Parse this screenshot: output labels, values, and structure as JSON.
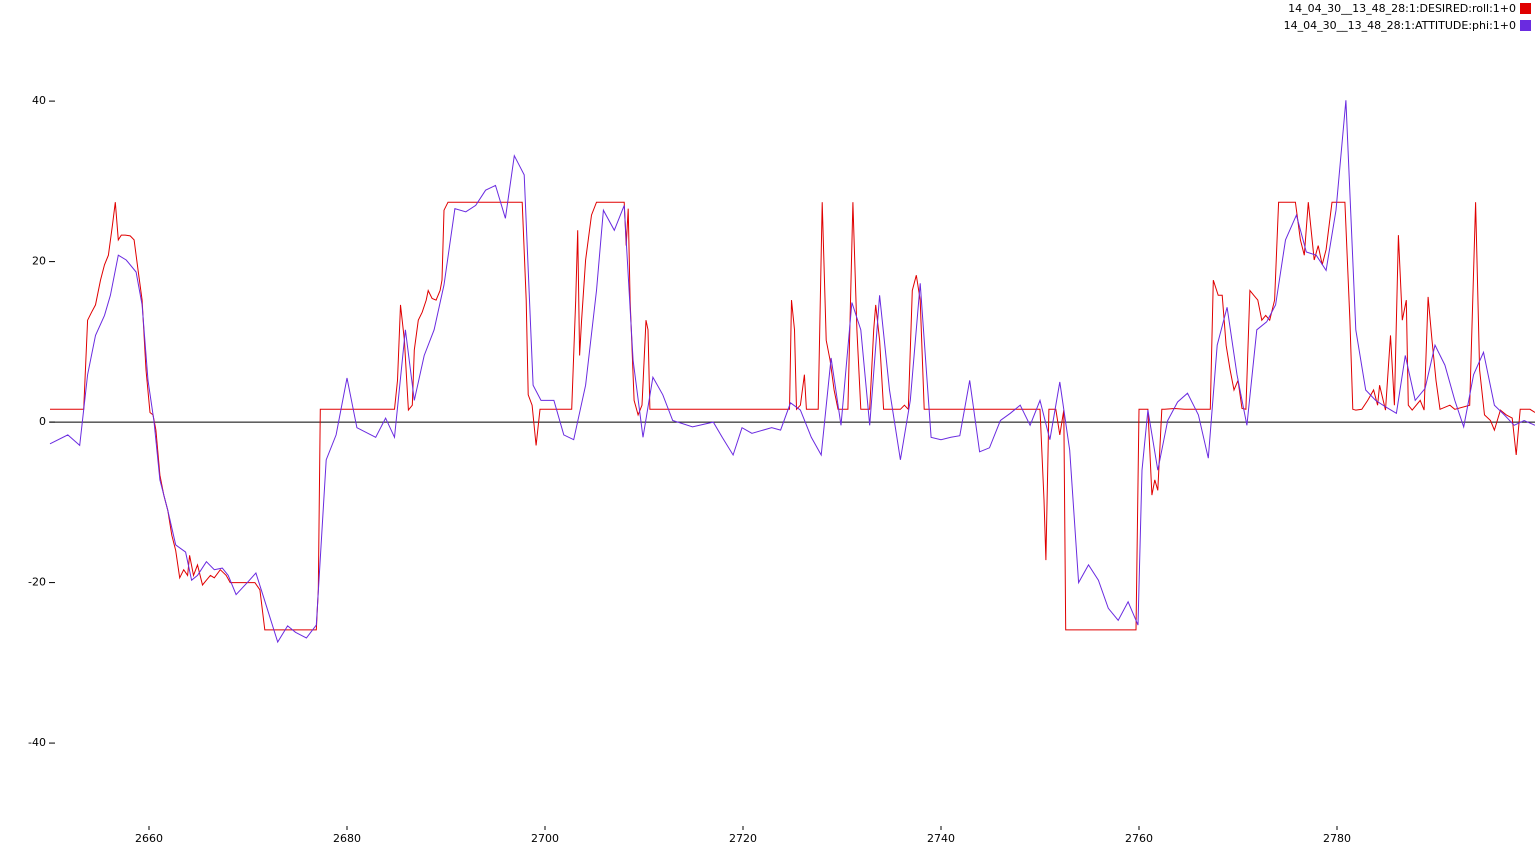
{
  "chart_data": {
    "type": "line",
    "xlim": [
      2650,
      2800
    ],
    "xticks": [
      2660,
      2680,
      2700,
      2720,
      2740,
      2760,
      2780
    ],
    "ylim": [
      -53.2,
      52.6
    ],
    "yticks": [
      -40,
      -20,
      0,
      20,
      40
    ],
    "legend": "upper right",
    "series": [
      {
        "name": "14_04_30__13_48_28:1:DESIRED:roll:1+0",
        "color": "#e00000",
        "x": [
          2650.0,
          2653.4,
          2653.8,
          2654.2,
          2654.6,
          2655.1,
          2655.5,
          2655.9,
          2656.3,
          2656.6,
          2656.9,
          2657.2,
          2657.6,
          2658.1,
          2658.5,
          2658.9,
          2659.3,
          2659.7,
          2660.1,
          2660.4,
          2660.7,
          2661.1,
          2661.5,
          2661.9,
          2662.3,
          2662.7,
          2663.1,
          2663.5,
          2663.9,
          2664.1,
          2664.5,
          2664.9,
          2665.4,
          2665.8,
          2666.2,
          2666.6,
          2667.2,
          2667.8,
          2668.2,
          2669.2,
          2670.7,
          2671.2,
          2671.7,
          2673.2,
          2675.3,
          2676.9,
          2677.1,
          2677.3,
          2679.3,
          2684.8,
          2685.1,
          2685.4,
          2685.8,
          2686.2,
          2686.6,
          2686.8,
          2687.2,
          2687.6,
          2688.0,
          2688.2,
          2688.6,
          2689.0,
          2689.4,
          2689.6,
          2689.8,
          2690.2,
          2692.4,
          2695.5,
          2697.7,
          2698.1,
          2698.3,
          2698.7,
          2699.1,
          2699.5,
          2702.7,
          2703.1,
          2703.3,
          2703.5,
          2703.7,
          2704.1,
          2704.7,
          2705.2,
          2707.6,
          2708.0,
          2708.2,
          2708.4,
          2708.6,
          2709.0,
          2709.4,
          2709.8,
          2710.2,
          2710.4,
          2710.6,
          2715.7,
          2724.7,
          2724.9,
          2725.2,
          2725.4,
          2725.8,
          2726.2,
          2726.4,
          2727.6,
          2728.0,
          2728.4,
          2728.8,
          2729.2,
          2729.6,
          2730.6,
          2731.1,
          2731.5,
          2731.9,
          2732.8,
          2733.2,
          2733.4,
          2733.8,
          2734.2,
          2735.9,
          2736.3,
          2736.7,
          2737.1,
          2737.5,
          2737.9,
          2738.3,
          2738.9,
          2746.0,
          2750.0,
          2750.4,
          2750.6,
          2750.9,
          2751.6,
          2752.0,
          2752.4,
          2752.6,
          2753.0,
          2759.7,
          2760.0,
          2760.9,
          2761.3,
          2761.6,
          2761.9,
          2762.3,
          2762.6,
          2763.6,
          2764.6,
          2767.2,
          2767.5,
          2768.0,
          2768.4,
          2768.8,
          2769.2,
          2769.6,
          2770.0,
          2770.4,
          2770.8,
          2771.2,
          2771.6,
          2772.0,
          2772.4,
          2772.8,
          2773.2,
          2773.7,
          2774.1,
          2775.8,
          2776.3,
          2776.7,
          2777.1,
          2777.7,
          2778.1,
          2778.5,
          2778.9,
          2779.5,
          2780.8,
          2781.3,
          2781.6,
          2781.9,
          2782.5,
          2783.1,
          2783.7,
          2784.1,
          2784.3,
          2784.9,
          2785.4,
          2785.8,
          2786.2,
          2786.6,
          2787.0,
          2787.2,
          2787.6,
          2788.4,
          2788.8,
          2789.2,
          2789.6,
          2790.0,
          2790.4,
          2791.4,
          2791.9,
          2793.4,
          2794.0,
          2794.4,
          2794.9,
          2795.5,
          2795.9,
          2796.5,
          2797.1,
          2797.7,
          2798.1,
          2798.5,
          2799.5,
          2800.0
        ],
        "values": [
          1.6,
          1.6,
          12.7,
          13.7,
          14.6,
          17.7,
          19.6,
          20.8,
          24.5,
          27.4,
          22.7,
          23.3,
          23.3,
          23.2,
          22.7,
          18.9,
          15.2,
          6.5,
          1.2,
          0.9,
          -1.0,
          -6.6,
          -9.1,
          -11.0,
          -14.1,
          -16.0,
          -19.4,
          -18.4,
          -19.1,
          -16.6,
          -19.1,
          -17.8,
          -20.3,
          -19.7,
          -19.1,
          -19.4,
          -18.4,
          -19.1,
          -20.0,
          -20.0,
          -20.0,
          -20.9,
          -25.9,
          -25.9,
          -25.9,
          -25.9,
          -20.9,
          1.6,
          1.6,
          1.6,
          5.2,
          14.6,
          10.2,
          1.5,
          2.1,
          9.0,
          12.7,
          13.7,
          15.2,
          16.4,
          15.4,
          15.2,
          16.4,
          17.7,
          26.4,
          27.4,
          27.4,
          27.4,
          27.4,
          15.2,
          3.4,
          2.1,
          -2.9,
          1.6,
          1.6,
          15.2,
          23.9,
          8.3,
          12.7,
          20.2,
          25.8,
          27.4,
          27.4,
          27.4,
          22.0,
          26.6,
          15.2,
          2.7,
          0.9,
          2.1,
          12.7,
          11.5,
          1.6,
          1.6,
          1.6,
          15.2,
          11.5,
          1.6,
          2.1,
          5.9,
          1.6,
          1.6,
          27.4,
          10.2,
          7.7,
          4.0,
          1.6,
          1.6,
          27.4,
          11.5,
          1.6,
          1.6,
          11.5,
          14.6,
          10.2,
          1.6,
          1.6,
          2.1,
          1.6,
          16.4,
          18.3,
          15.2,
          1.6,
          1.6,
          1.6,
          1.6,
          -9.7,
          -17.2,
          1.6,
          1.6,
          -1.6,
          1.5,
          -25.9,
          -25.9,
          -25.9,
          1.6,
          1.6,
          -9.1,
          -7.2,
          -8.5,
          1.6,
          1.6,
          1.7,
          1.6,
          1.6,
          17.7,
          15.8,
          15.8,
          9.6,
          6.5,
          4.0,
          5.2,
          1.7,
          1.6,
          16.4,
          15.8,
          15.2,
          12.7,
          13.3,
          12.7,
          15.2,
          27.4,
          27.4,
          22.7,
          20.8,
          27.4,
          20.2,
          22.0,
          19.6,
          21.5,
          27.4,
          27.4,
          12.7,
          1.6,
          1.5,
          1.6,
          2.7,
          4.0,
          2.1,
          4.6,
          1.5,
          10.8,
          2.1,
          23.3,
          12.7,
          15.2,
          2.1,
          1.5,
          2.7,
          1.5,
          15.6,
          10.2,
          5.2,
          1.6,
          2.1,
          1.6,
          2.1,
          27.4,
          6.5,
          0.9,
          0.2,
          -1.0,
          1.5,
          0.9,
          0.5,
          -4.1,
          1.6,
          1.6,
          1.2
        ]
      },
      {
        "name": "14_04_30__13_48_28:1:ATTITUDE:phi:1+0",
        "color": "#6a2be0",
        "x": [
          2650.0,
          2651.8,
          2653.0,
          2653.8,
          2654.6,
          2655.5,
          2656.1,
          2656.9,
          2657.7,
          2658.7,
          2659.3,
          2659.9,
          2660.5,
          2661.1,
          2661.9,
          2662.7,
          2663.7,
          2664.3,
          2664.9,
          2665.8,
          2666.6,
          2667.4,
          2668.0,
          2668.8,
          2670.0,
          2670.8,
          2671.6,
          2673.0,
          2674.0,
          2674.8,
          2675.9,
          2676.9,
          2677.9,
          2678.9,
          2680.0,
          2681.0,
          2682.9,
          2683.9,
          2684.8,
          2685.9,
          2686.8,
          2687.8,
          2688.8,
          2689.8,
          2690.9,
          2692.0,
          2693.0,
          2694.0,
          2695.0,
          2696.0,
          2696.9,
          2697.9,
          2698.8,
          2699.6,
          2700.9,
          2701.9,
          2702.9,
          2704.1,
          2705.2,
          2705.9,
          2707.0,
          2708.0,
          2708.9,
          2709.9,
          2710.9,
          2711.9,
          2712.9,
          2714.9,
          2717.0,
          2717.9,
          2719.0,
          2719.9,
          2720.9,
          2722.9,
          2723.8,
          2724.8,
          2725.8,
          2726.9,
          2727.9,
          2728.9,
          2729.9,
          2731.0,
          2731.9,
          2732.8,
          2733.8,
          2734.8,
          2735.9,
          2736.9,
          2737.9,
          2739.0,
          2740.0,
          2741.0,
          2741.9,
          2742.9,
          2743.9,
          2744.9,
          2746.0,
          2747.0,
          2748.0,
          2749.0,
          2750.0,
          2751.0,
          2752.0,
          2753.0,
          2753.9,
          2754.9,
          2755.9,
          2756.9,
          2757.9,
          2758.9,
          2759.9,
          2760.3,
          2760.9,
          2761.9,
          2762.9,
          2763.9,
          2764.9,
          2766.0,
          2767.0,
          2767.9,
          2768.9,
          2769.9,
          2770.9,
          2771.9,
          2772.9,
          2773.8,
          2774.8,
          2775.9,
          2776.9,
          2777.9,
          2778.9,
          2779.9,
          2780.9,
          2781.9,
          2782.9,
          2783.9,
          2784.9,
          2786.0,
          2786.9,
          2787.9,
          2788.9,
          2789.9,
          2790.9,
          2791.9,
          2792.8,
          2793.8,
          2794.8,
          2795.9,
          2796.9,
          2797.9,
          2798.9,
          2800.0
        ],
        "values": [
          -2.7,
          -1.6,
          -2.9,
          5.9,
          10.8,
          13.3,
          15.8,
          20.8,
          20.2,
          18.7,
          14.6,
          5.2,
          0.2,
          -7.2,
          -11.0,
          -15.3,
          -16.2,
          -19.7,
          -19.1,
          -17.4,
          -18.4,
          -18.2,
          -19.1,
          -21.5,
          -19.9,
          -18.8,
          -21.9,
          -27.4,
          -25.4,
          -26.2,
          -26.9,
          -25.3,
          -4.7,
          -1.6,
          5.5,
          -0.7,
          -1.9,
          0.5,
          -1.9,
          11.5,
          2.7,
          8.3,
          11.5,
          17.1,
          26.6,
          26.2,
          27.0,
          28.9,
          29.5,
          25.4,
          33.2,
          30.8,
          4.6,
          2.7,
          2.7,
          -1.6,
          -2.2,
          4.6,
          16.4,
          26.4,
          23.9,
          27.0,
          7.7,
          -1.9,
          5.6,
          3.4,
          0.2,
          -0.6,
          0.0,
          -1.9,
          -4.1,
          -0.7,
          -1.4,
          -0.7,
          -1.0,
          2.4,
          1.5,
          -1.9,
          -4.1,
          8.0,
          -0.4,
          14.9,
          11.5,
          -0.4,
          15.8,
          4.0,
          -4.7,
          2.7,
          17.3,
          -1.9,
          -2.2,
          -1.9,
          -1.7,
          5.2,
          -3.7,
          -3.2,
          0.2,
          1.1,
          2.1,
          -0.4,
          2.7,
          -2.2,
          5.0,
          -3.5,
          -20.0,
          -17.8,
          -19.7,
          -23.2,
          -24.7,
          -22.4,
          -25.3,
          -6.0,
          1.5,
          -6.0,
          0.2,
          2.5,
          3.6,
          0.9,
          -4.5,
          9.6,
          14.3,
          5.9,
          -0.4,
          11.5,
          12.5,
          14.6,
          22.7,
          25.8,
          21.2,
          20.8,
          18.9,
          26.4,
          40.1,
          11.5,
          4.0,
          2.7,
          1.9,
          1.1,
          8.3,
          2.7,
          4.2,
          9.6,
          7.1,
          2.7,
          -0.6,
          5.9,
          8.7,
          2.1,
          0.9,
          -0.4,
          0.2,
          -0.4
        ]
      }
    ]
  }
}
